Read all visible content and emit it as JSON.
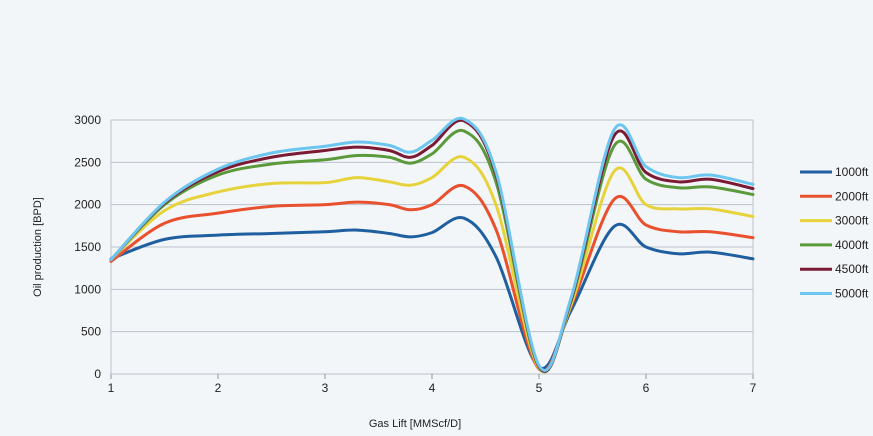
{
  "chart_data": {
    "type": "line",
    "xlabel": "Gas Lift [MMScf/D]",
    "ylabel": "Oil production [BPD]",
    "xlim": [
      1,
      7
    ],
    "ylim": [
      0,
      3000
    ],
    "xticks": [
      "1",
      "2",
      "3",
      "4",
      "5",
      "6",
      "7"
    ],
    "yticks": [
      "0",
      "500",
      "1000",
      "1500",
      "2000",
      "2500",
      "3000"
    ],
    "grid": "horizontal",
    "legend_position": "right",
    "x": [
      1,
      1.5,
      2,
      2.5,
      3,
      3.3,
      3.6,
      3.8,
      4,
      4.3,
      4.6,
      5,
      5.3,
      5.7,
      6,
      6.3,
      6.6,
      7
    ],
    "series": [
      {
        "name": "1000ft",
        "color": "#1f5fa0",
        "values": [
          1360,
          1590,
          1640,
          1660,
          1680,
          1700,
          1660,
          1620,
          1670,
          1840,
          1380,
          80,
          750,
          1740,
          1500,
          1420,
          1440,
          1360
        ]
      },
      {
        "name": "2000ft",
        "color": "#e8502e",
        "values": [
          1330,
          1780,
          1900,
          1980,
          2000,
          2030,
          2000,
          1940,
          2000,
          2220,
          1700,
          60,
          800,
          2060,
          1760,
          1680,
          1680,
          1610
        ]
      },
      {
        "name": "3000ft",
        "color": "#e6d33c",
        "values": [
          1350,
          1930,
          2150,
          2250,
          2260,
          2320,
          2270,
          2230,
          2320,
          2560,
          1990,
          70,
          820,
          2390,
          2000,
          1950,
          1950,
          1860
        ]
      },
      {
        "name": "4000ft",
        "color": "#5a9a3a",
        "values": [
          1350,
          2000,
          2350,
          2480,
          2530,
          2580,
          2560,
          2490,
          2600,
          2870,
          2260,
          80,
          860,
          2690,
          2300,
          2200,
          2210,
          2120
        ]
      },
      {
        "name": "4500ft",
        "color": "#7a1a35",
        "values": [
          1350,
          2020,
          2390,
          2560,
          2640,
          2680,
          2640,
          2560,
          2700,
          2990,
          2350,
          90,
          880,
          2810,
          2380,
          2270,
          2300,
          2190
        ]
      },
      {
        "name": "5000ft",
        "color": "#6cc6f0",
        "values": [
          1350,
          2030,
          2420,
          2610,
          2690,
          2740,
          2700,
          2620,
          2760,
          3010,
          2380,
          100,
          900,
          2880,
          2450,
          2320,
          2350,
          2240
        ]
      }
    ]
  }
}
